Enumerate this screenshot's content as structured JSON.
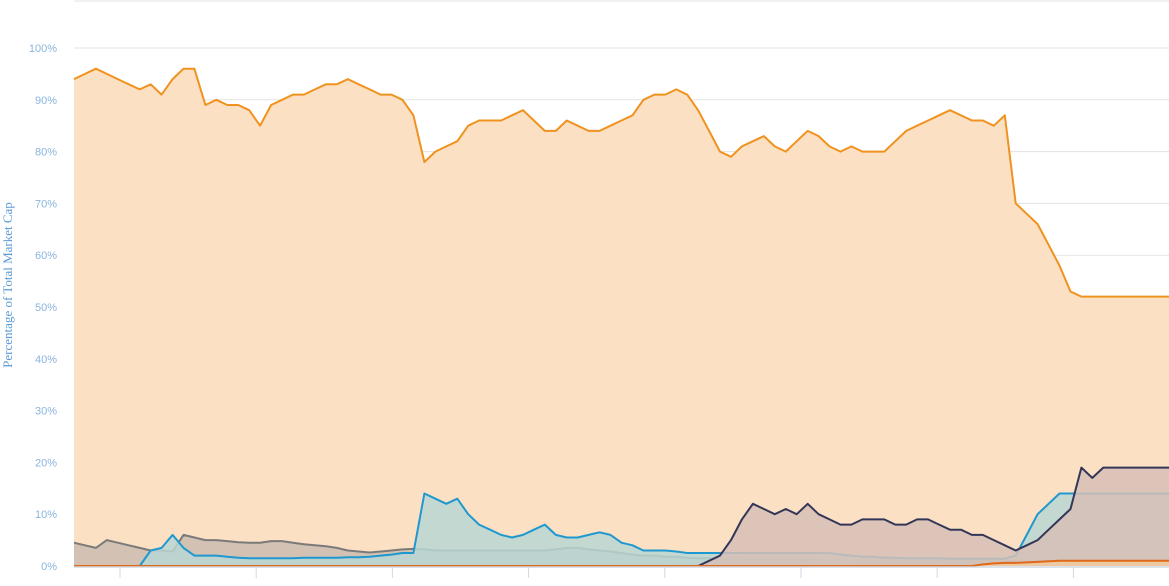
{
  "chart_data": {
    "type": "area",
    "title": "",
    "xlabel": "",
    "ylabel": "Percentage of Total Market Cap",
    "ylim": [
      0,
      100
    ],
    "yticks": [
      "0%",
      "10%",
      "20%",
      "30%",
      "40%",
      "50%",
      "60%",
      "70%",
      "80%",
      "90%",
      "100%"
    ],
    "x_tick_count": 8,
    "grid": true,
    "legend": "none",
    "colors": {
      "gridline": "#e3e3e3",
      "tick_label": "#8ab4de",
      "axis_title": "#5b9bd5",
      "axis_line": "#cfd8e4"
    },
    "x": [
      0,
      1,
      2,
      3,
      4,
      5,
      6,
      7,
      8,
      9,
      10,
      11,
      12,
      13,
      14,
      15,
      16,
      17,
      18,
      19,
      20,
      21,
      22,
      23,
      24,
      25,
      26,
      27,
      28,
      29,
      30,
      31,
      32,
      33,
      34,
      35,
      36,
      37,
      38,
      39,
      40,
      41,
      42,
      43,
      44,
      45,
      46,
      47,
      48,
      49,
      50,
      51,
      52,
      53,
      54,
      55,
      56,
      57,
      58,
      59,
      60,
      61,
      62,
      63,
      64,
      65,
      66,
      67,
      68,
      69,
      70,
      71,
      72,
      73,
      74,
      75,
      76,
      77,
      78,
      79,
      80,
      81,
      82,
      83,
      84,
      85,
      86,
      87,
      88,
      89,
      90,
      91,
      92,
      93,
      94,
      95,
      96,
      97,
      98,
      99,
      100
    ],
    "series": [
      {
        "color": "#f0921e",
        "fill": "#fbe0c4",
        "values": [
          94,
          95,
          96,
          95,
          94,
          93,
          92,
          93,
          91,
          94,
          96,
          96,
          89,
          90,
          89,
          89,
          88,
          85,
          89,
          90,
          91,
          91,
          92,
          93,
          93,
          94,
          93,
          92,
          91,
          91,
          90,
          87,
          78,
          80,
          81,
          82,
          85,
          86,
          86,
          86,
          87,
          88,
          86,
          84,
          84,
          86,
          85,
          84,
          84,
          85,
          86,
          87,
          90,
          91,
          91,
          92,
          91,
          88,
          84,
          80,
          79,
          81,
          82,
          83,
          81,
          80,
          82,
          84,
          83,
          81,
          80,
          81,
          80,
          80,
          80,
          82,
          84,
          85,
          86,
          87,
          88,
          87,
          86,
          86,
          85,
          87,
          70,
          68,
          66,
          62,
          58,
          53,
          52,
          52,
          52,
          52,
          52,
          52,
          52,
          52,
          52
        ]
      },
      {
        "color": "#7a7a7a",
        "fill": "#cbbcb0",
        "values": [
          4.5,
          4,
          3.5,
          5,
          4.5,
          4,
          3.5,
          3,
          3,
          2.8,
          6,
          5.5,
          5,
          5,
          4.8,
          4.6,
          4.5,
          4.5,
          4.8,
          4.8,
          4.5,
          4.2,
          4,
          3.8,
          3.5,
          3,
          2.8,
          2.6,
          2.8,
          3,
          3.2,
          3.3,
          3.2,
          3,
          3,
          3,
          3,
          3,
          3,
          3,
          3,
          3,
          3,
          3,
          3.2,
          3.5,
          3.5,
          3.2,
          3,
          2.8,
          2.5,
          2.2,
          2,
          2,
          1.8,
          1.8,
          1.6,
          1.5,
          1.5,
          1.4,
          1.4,
          1.4,
          1.3,
          1.3,
          1.2,
          1.2,
          1.2,
          1.2,
          1.1,
          1.1,
          1.1,
          1.1,
          1,
          1,
          1,
          1,
          1,
          1,
          1,
          1,
          1,
          1,
          1,
          1,
          1,
          1,
          1,
          1,
          1,
          1,
          1,
          1,
          1,
          1,
          1,
          1,
          1,
          1,
          1,
          1,
          1
        ]
      },
      {
        "color": "#1f98cf",
        "fill": "#b8d6d4",
        "values": [
          0,
          0,
          0,
          0,
          0,
          0,
          0,
          3,
          3.5,
          6,
          3.5,
          2,
          2,
          2,
          1.8,
          1.6,
          1.5,
          1.5,
          1.5,
          1.5,
          1.5,
          1.6,
          1.6,
          1.6,
          1.6,
          1.7,
          1.7,
          1.8,
          2,
          2.2,
          2.5,
          2.5,
          14,
          13,
          12,
          13,
          10,
          8,
          7,
          6,
          5.5,
          6,
          7,
          8,
          6,
          5.5,
          5.5,
          6,
          6.5,
          6,
          4.5,
          4,
          3,
          3,
          3,
          2.8,
          2.5,
          2.5,
          2.5,
          2.5,
          2.5,
          2.5,
          2.5,
          2.5,
          2.5,
          2.5,
          2.5,
          2.5,
          2.5,
          2.5,
          2.2,
          2,
          1.8,
          1.8,
          1.6,
          1.6,
          1.5,
          1.5,
          1.5,
          1.5,
          1.4,
          1.4,
          1.4,
          1.4,
          1.4,
          1.4,
          2,
          6,
          10,
          12,
          14,
          14,
          14,
          14,
          14,
          14,
          14,
          14,
          14,
          14,
          14
        ]
      },
      {
        "color": "#343658",
        "fill": "#d6c0b6",
        "values": [
          0,
          0,
          0,
          0,
          0,
          0,
          0,
          0,
          0,
          0,
          0,
          0,
          0,
          0,
          0,
          0,
          0,
          0,
          0,
          0,
          0,
          0,
          0,
          0,
          0,
          0,
          0,
          0,
          0,
          0,
          0,
          0,
          0,
          0,
          0,
          0,
          0,
          0,
          0,
          0,
          0,
          0,
          0,
          0,
          0,
          0,
          0,
          0,
          0,
          0,
          0,
          0,
          0,
          0,
          0,
          0,
          0,
          0,
          1,
          2,
          5,
          9,
          12,
          11,
          10,
          11,
          10,
          12,
          10,
          9,
          8,
          8,
          9,
          9,
          9,
          8,
          8,
          9,
          9,
          8,
          7,
          7,
          6,
          6,
          5,
          4,
          3,
          4,
          5,
          7,
          9,
          11,
          19,
          17,
          19,
          19,
          19,
          19,
          19,
          19,
          19
        ]
      },
      {
        "color": "#e06a1c",
        "fill": "#f3c99a",
        "values": [
          0,
          0,
          0,
          0,
          0,
          0,
          0,
          0,
          0,
          0,
          0,
          0,
          0,
          0,
          0,
          0,
          0,
          0,
          0,
          0,
          0,
          0,
          0,
          0,
          0,
          0,
          0,
          0,
          0,
          0,
          0,
          0,
          0,
          0,
          0,
          0,
          0,
          0,
          0,
          0,
          0,
          0,
          0,
          0,
          0,
          0,
          0,
          0,
          0,
          0,
          0,
          0,
          0,
          0,
          0,
          0,
          0,
          0,
          0,
          0,
          0,
          0,
          0,
          0,
          0,
          0,
          0,
          0,
          0,
          0,
          0,
          0,
          0,
          0,
          0,
          0,
          0,
          0,
          0,
          0,
          0,
          0,
          0,
          0.3,
          0.5,
          0.6,
          0.6,
          0.7,
          0.8,
          0.9,
          1,
          1,
          1,
          1,
          1,
          1,
          1,
          1,
          1,
          1,
          1
        ]
      }
    ]
  }
}
